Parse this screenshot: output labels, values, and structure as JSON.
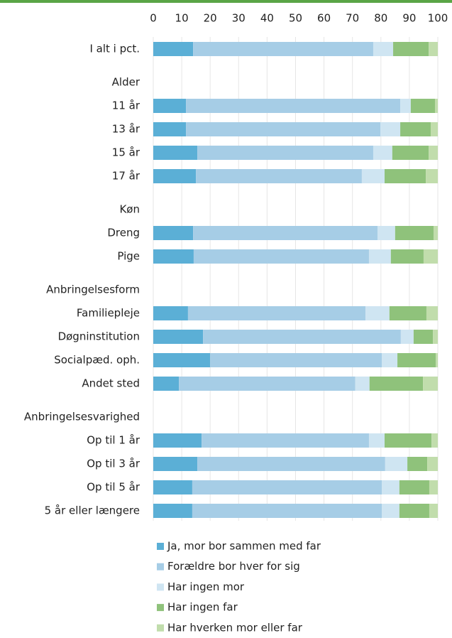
{
  "chart_data": {
    "type": "bar",
    "orientation": "horizontal",
    "stacked": true,
    "categories": [
      "I alt i pct.",
      "Alder",
      "11 år",
      "13 år",
      "15 år",
      "17 år",
      "Køn",
      "Dreng",
      "Pige",
      "Anbringelsesform",
      "Familiepleje",
      "Døgninstitution",
      "Socialpæd. oph.",
      "Andet sted",
      "Anbringelsesvarighed",
      "Op til 1 år",
      "Op til 3 år",
      "Op til 5 år",
      "5 år eller længere"
    ],
    "series": [
      {
        "name": "Ja, mor bor sammen med far",
        "color": "#5bafd6",
        "values": [
          14,
          null,
          11.5,
          11.5,
          15.5,
          15,
          null,
          14,
          14.2,
          null,
          12.2,
          17.5,
          20,
          9,
          null,
          17,
          15.5,
          13.7,
          13.7
        ]
      },
      {
        "name": "Forældre bor hver for sig",
        "color": "#a6cde6",
        "values": [
          63.3,
          null,
          75.3,
          68.3,
          61.8,
          58.3,
          null,
          64.8,
          61.6,
          null,
          62.4,
          69.5,
          60.3,
          62,
          null,
          58.8,
          66,
          66.6,
          66.6
        ]
      },
      {
        "name": "Har ingen mor",
        "color": "#cfe5f2",
        "values": [
          7,
          null,
          3.7,
          7,
          6.7,
          8,
          null,
          6.2,
          7.7,
          null,
          8.4,
          4.5,
          5.5,
          5,
          null,
          5.5,
          7.8,
          6.2,
          6.2
        ]
      },
      {
        "name": "Har ingen far",
        "color": "#8fc27b",
        "values": [
          12.5,
          null,
          8.5,
          10.7,
          12.8,
          14.5,
          null,
          13.5,
          11.5,
          null,
          13,
          6.8,
          13.5,
          18.8,
          null,
          16.5,
          7,
          10.5,
          10.5
        ]
      },
      {
        "name": "Har hverken mor eller far",
        "color": "#c1ddac",
        "values": [
          3.2,
          null,
          1,
          2.5,
          3.2,
          4.2,
          null,
          1.5,
          5,
          null,
          4,
          1.7,
          0.7,
          5.2,
          null,
          2.2,
          3.7,
          3,
          3
        ]
      }
    ],
    "xlim": [
      0,
      100
    ],
    "xticks": [
      0,
      10,
      20,
      30,
      40,
      50,
      60,
      70,
      80,
      90,
      100
    ],
    "grid": true,
    "legend": "bottom"
  }
}
